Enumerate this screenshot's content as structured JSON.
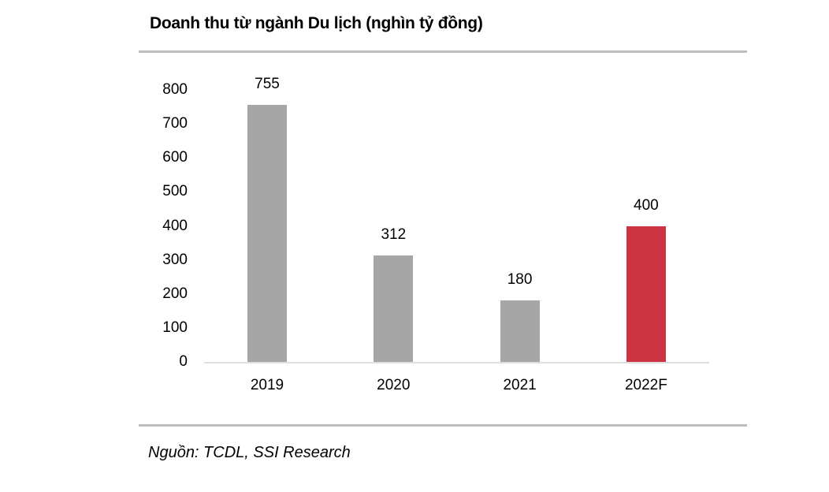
{
  "title": "Doanh thu từ ngành Du lịch (nghìn tỷ đồng)",
  "source": "Nguồn: TCDL, SSI Research",
  "colors": {
    "bar_default": "#A6A6A6",
    "bar_highlight": "#CE3341",
    "axis_line": "#DEDEDE",
    "divider": "#BDBDBD",
    "text": "#000000"
  },
  "chart_data": {
    "type": "bar",
    "title": "Doanh thu từ ngành Du lịch (nghìn tỷ đồng)",
    "categories": [
      "2019",
      "2020",
      "2021",
      "2022F"
    ],
    "values": [
      755,
      312,
      180,
      400
    ],
    "data_labels": [
      "755",
      "312",
      "180",
      "400"
    ],
    "bar_colors": [
      "#A6A6A6",
      "#A6A6A6",
      "#A6A6A6",
      "#CE3341"
    ],
    "highlight_category": "2022F",
    "xlabel": "",
    "ylabel": "",
    "ylim": [
      0,
      800
    ],
    "yticks": [
      0,
      100,
      200,
      300,
      400,
      500,
      600,
      700,
      800
    ],
    "grid": false,
    "legend_position": "none",
    "source": "Nguồn: TCDL, SSI Research"
  }
}
